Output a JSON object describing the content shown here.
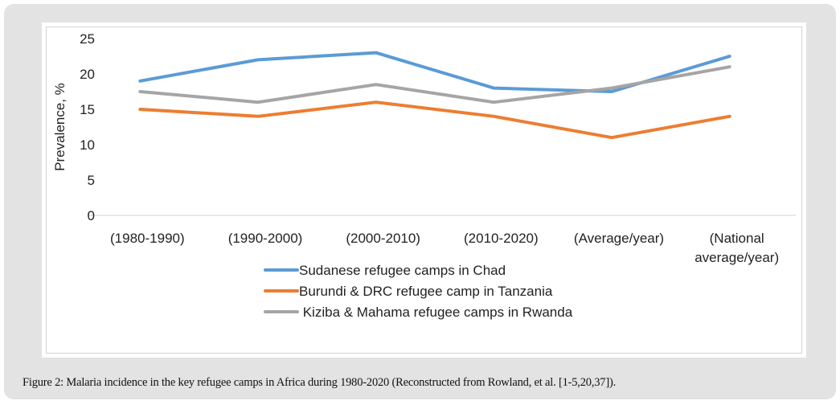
{
  "chart_data": {
    "type": "line",
    "title": "",
    "xlabel": "",
    "ylabel": "Prevalence, %",
    "ylim": [
      0,
      25
    ],
    "yticks": [
      0,
      5,
      10,
      15,
      20,
      25
    ],
    "grid": false,
    "categories": [
      [
        "(1980-1990)"
      ],
      [
        "(1990-2000)"
      ],
      [
        "(2000-2010)"
      ],
      [
        "(2010-2020)"
      ],
      [
        "(Average/year)"
      ],
      [
        "(National",
        "average/year)"
      ]
    ],
    "series": [
      {
        "name": "Sudanese refugee camps in Chad",
        "color": "#5b9bd5",
        "values": [
          19,
          22,
          23,
          18,
          17.5,
          22.5
        ]
      },
      {
        "name": "Burundi & DRC refugee camp in Tanzania",
        "color": "#ed7d31",
        "values": [
          15,
          14,
          16,
          14,
          11,
          14
        ]
      },
      {
        "name": " Kiziba & Mahama refugee camps in Rwanda",
        "color": "#a5a5a5",
        "values": [
          17.5,
          16,
          18.5,
          16,
          18,
          21
        ]
      }
    ],
    "legend_position": "bottom-center"
  },
  "caption": {
    "label": "Figure 2:",
    "text": " Malaria incidence in the key refugee camps in Africa during 1980-2020 (Reconstructed from Rowland, et al. [1-5,20,37])."
  }
}
